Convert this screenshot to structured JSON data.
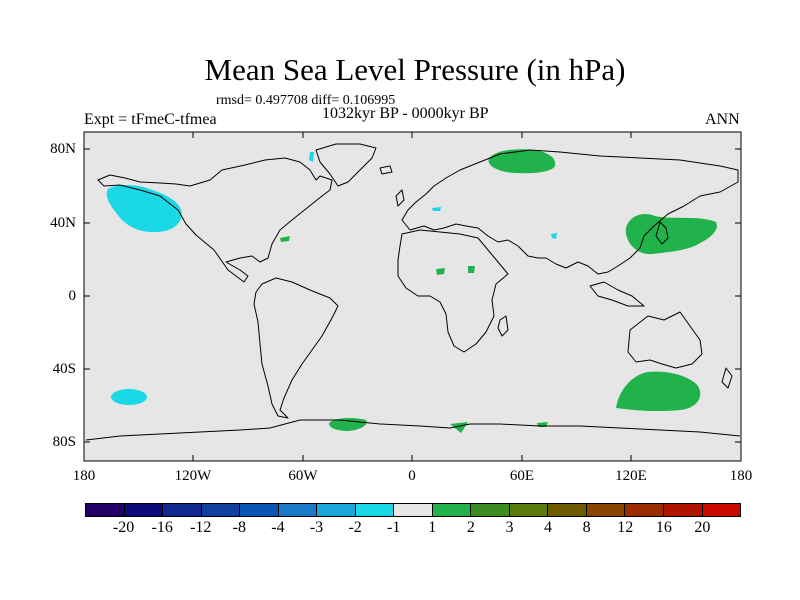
{
  "title": "Mean Sea Level Pressure (in hPa)",
  "subtitle": "rmsd= 0.497708 diff= 0.106995",
  "left_label": "Expt = tFmeC-tfmea",
  "center_label": "1032kyr BP - 0000kyr BP",
  "right_label": "ANN",
  "lat_ticks": [
    "80N",
    "40N",
    "0",
    "40S",
    "80S"
  ],
  "lon_ticks": [
    "180",
    "120W",
    "60W",
    "0",
    "60E",
    "120E",
    "180"
  ],
  "colorbar": {
    "colors": [
      "#220066",
      "#0a0a7a",
      "#102890",
      "#1040a0",
      "#0a55b5",
      "#1a7ac8",
      "#1aa6d8",
      "#1ad8e6",
      "#e6e6e6",
      "#22b24c",
      "#3c8c22",
      "#5a7a0a",
      "#6e5a00",
      "#884400",
      "#9a2c00",
      "#b01400",
      "#c80a00"
    ],
    "labels": [
      "-20",
      "-16",
      "-12",
      "-8",
      "-4",
      "-3",
      "-2",
      "-1",
      "1",
      "2",
      "3",
      "4",
      "8",
      "12",
      "16",
      "20"
    ]
  },
  "colors": {
    "background": "#e6e6e6",
    "negative_anomaly": "#1ad8e6",
    "positive_anomaly": "#22b24c"
  }
}
